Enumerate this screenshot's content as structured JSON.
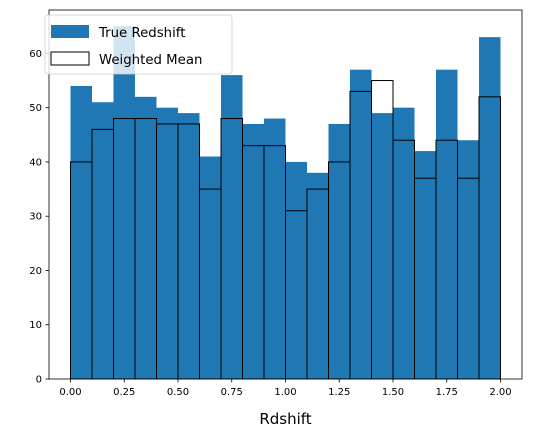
{
  "chart_data": {
    "type": "bar",
    "title": "",
    "xlabel": "Rdshift",
    "ylabel": "",
    "xlim": [
      -0.1,
      2.1
    ],
    "ylim": [
      0,
      68
    ],
    "xticks": [
      "0.00",
      "0.25",
      "0.50",
      "0.75",
      "1.00",
      "1.25",
      "1.50",
      "1.75",
      "2.00"
    ],
    "yticks": [
      "0",
      "10",
      "20",
      "30",
      "40",
      "50",
      "60"
    ],
    "grid": false,
    "legend_position": "top-left",
    "bin_edges": [
      0.0,
      0.1,
      0.2,
      0.3,
      0.4,
      0.5,
      0.6,
      0.7,
      0.8,
      0.9,
      1.0,
      1.1,
      1.2,
      1.3,
      1.4,
      1.5,
      1.6,
      1.7,
      1.8,
      1.9,
      2.0
    ],
    "series": [
      {
        "name": "True Redshift",
        "style": "filled",
        "color": "#1f77b4",
        "values": [
          54,
          51,
          65,
          52,
          50,
          49,
          41,
          56,
          47,
          48,
          40,
          38,
          47,
          57,
          49,
          50,
          42,
          57,
          44,
          63
        ]
      },
      {
        "name": "Weighted Mean",
        "style": "step-outline",
        "color": "#000000",
        "values": [
          40,
          46,
          48,
          48,
          47,
          47,
          35,
          48,
          43,
          43,
          31,
          35,
          40,
          53,
          55,
          44,
          37,
          44,
          37,
          52
        ]
      }
    ]
  }
}
